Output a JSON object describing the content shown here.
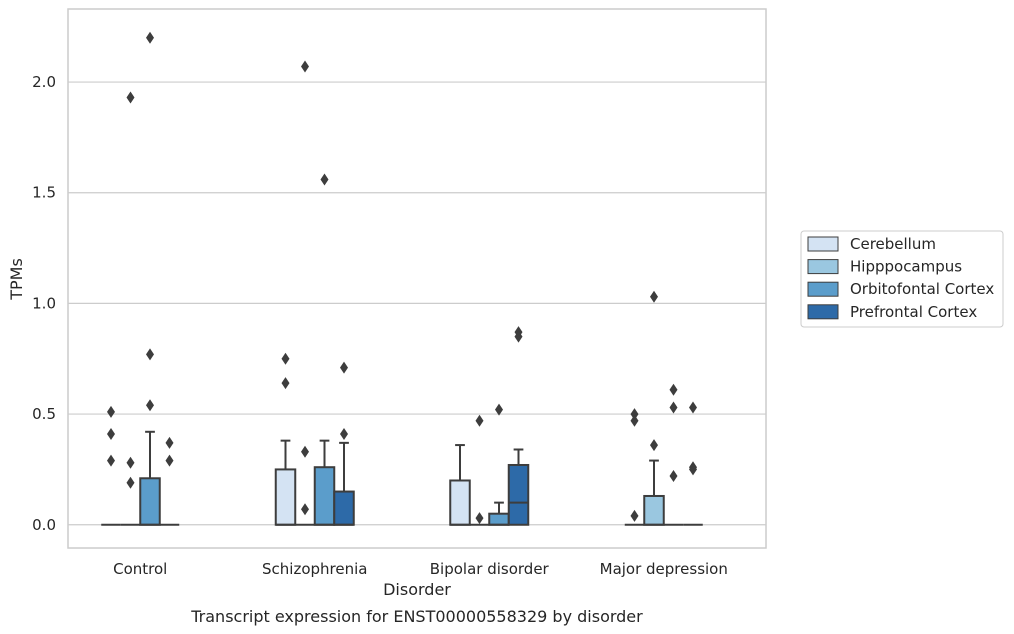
{
  "chart_data": {
    "type": "box",
    "title": "Transcript expression for ENST00000558329 by disorder",
    "xlabel": "Disorder",
    "ylabel": "TPMs",
    "ylim": [
      -0.105,
      2.33
    ],
    "yticks": [
      0.0,
      0.5,
      1.0,
      1.5,
      2.0
    ],
    "ytick_labels": [
      "0.0",
      "0.5",
      "1.0",
      "1.5",
      "2.0"
    ],
    "grid": "horizontal",
    "legend_position": "right",
    "categories": [
      "Control",
      "Schizophrenia",
      "Bipolar disorder",
      "Major depression"
    ],
    "series": [
      {
        "name": "Cerebellum",
        "color": "#d4e3f3",
        "boxes": [
          {
            "q1": 0,
            "median": 0,
            "q3": 0,
            "whisker_low": 0,
            "whisker_high": 0,
            "outliers": [
              0.51,
              0.41,
              0.29
            ]
          },
          {
            "q1": 0,
            "median": 0,
            "q3": 0.25,
            "whisker_low": 0,
            "whisker_high": 0.38,
            "outliers": [
              0.75,
              0.64
            ]
          },
          {
            "q1": 0,
            "median": 0,
            "q3": 0.2,
            "whisker_low": 0,
            "whisker_high": 0.36,
            "outliers": []
          },
          {
            "q1": 0,
            "median": 0,
            "q3": 0,
            "whisker_low": 0,
            "whisker_high": 0,
            "outliers": [
              0.5,
              0.47,
              0.04
            ]
          }
        ]
      },
      {
        "name": "Hipppocampus",
        "color": "#9ac7e0",
        "boxes": [
          {
            "q1": 0,
            "median": 0,
            "q3": 0,
            "whisker_low": 0,
            "whisker_high": 0,
            "outliers": [
              1.93,
              0.28,
              0.19
            ]
          },
          {
            "q1": 0,
            "median": 0,
            "q3": 0,
            "whisker_low": 0,
            "whisker_high": 0,
            "outliers": [
              2.07,
              0.33,
              0.07
            ]
          },
          {
            "q1": 0,
            "median": 0,
            "q3": 0,
            "whisker_low": 0,
            "whisker_high": 0,
            "outliers": [
              0.47,
              0.03
            ]
          },
          {
            "q1": 0,
            "median": 0,
            "q3": 0.13,
            "whisker_low": 0,
            "whisker_high": 0.29,
            "outliers": [
              1.03,
              0.36
            ]
          }
        ]
      },
      {
        "name": "Orbitofontal Cortex",
        "color": "#5b9dcb",
        "boxes": [
          {
            "q1": 0,
            "median": 0,
            "q3": 0.21,
            "whisker_low": 0,
            "whisker_high": 0.42,
            "outliers": [
              2.2,
              0.77,
              0.54
            ]
          },
          {
            "q1": 0,
            "median": 0,
            "q3": 0.26,
            "whisker_low": 0,
            "whisker_high": 0.38,
            "outliers": [
              1.56
            ]
          },
          {
            "q1": 0,
            "median": 0,
            "q3": 0.05,
            "whisker_low": 0,
            "whisker_high": 0.1,
            "outliers": [
              0.52
            ]
          },
          {
            "q1": 0,
            "median": 0,
            "q3": 0,
            "whisker_low": 0,
            "whisker_high": 0,
            "outliers": [
              0.61,
              0.53,
              0.22
            ]
          }
        ]
      },
      {
        "name": "Prefrontal Cortex",
        "color": "#2d6aa8",
        "boxes": [
          {
            "q1": 0,
            "median": 0,
            "q3": 0,
            "whisker_low": 0,
            "whisker_high": 0,
            "outliers": [
              0.37,
              0.29
            ]
          },
          {
            "q1": 0,
            "median": 0,
            "q3": 0.15,
            "whisker_low": 0,
            "whisker_high": 0.37,
            "outliers": [
              0.71,
              0.41
            ]
          },
          {
            "q1": 0,
            "median": 0.1,
            "q3": 0.27,
            "whisker_low": 0,
            "whisker_high": 0.34,
            "outliers": [
              0.87,
              0.85
            ]
          },
          {
            "q1": 0,
            "median": 0,
            "q3": 0,
            "whisker_low": 0,
            "whisker_high": 0,
            "outliers": [
              0.53,
              0.26,
              0.25
            ]
          }
        ]
      }
    ]
  }
}
